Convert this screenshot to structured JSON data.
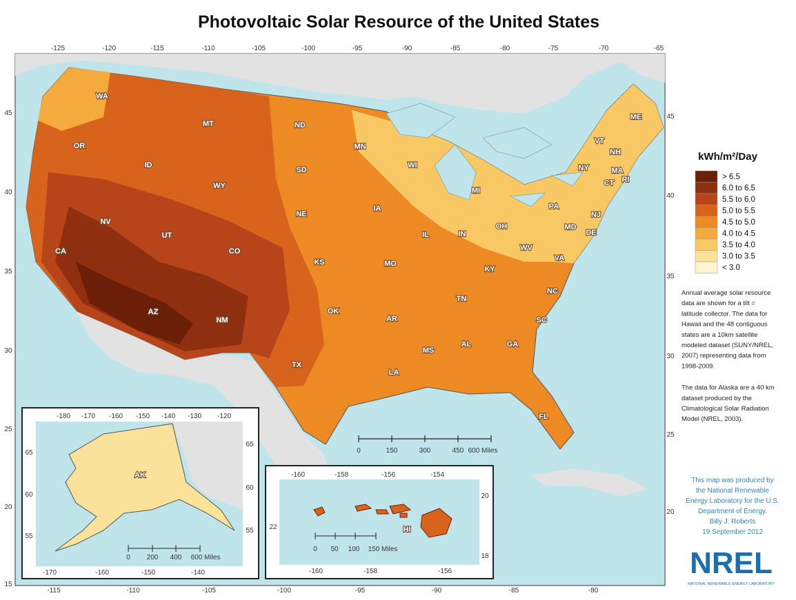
{
  "title": "Photovoltaic Solar Resource of the United States",
  "map": {
    "top_ticks": [
      "-125",
      "-120",
      "-115",
      "-110",
      "-105",
      "-100",
      "-95",
      "-90",
      "-85",
      "-80",
      "-75",
      "-70",
      "-65"
    ],
    "bottom_ticks": [
      "-115",
      "-110",
      "-105",
      "-100",
      "-95",
      "-90",
      "-85",
      "-80"
    ],
    "left_ticks": [
      "45",
      "40",
      "35",
      "30",
      "25",
      "20",
      "15"
    ],
    "right_ticks": [
      "45",
      "40",
      "35",
      "30",
      "25",
      "20"
    ],
    "states": [
      "WA",
      "OR",
      "CA",
      "NV",
      "ID",
      "MT",
      "WY",
      "UT",
      "CO",
      "AZ",
      "NM",
      "ND",
      "SD",
      "NE",
      "KS",
      "OK",
      "TX",
      "MN",
      "IA",
      "MO",
      "AR",
      "LA",
      "WI",
      "IL",
      "MS",
      "AL",
      "MI",
      "IN",
      "KY",
      "TN",
      "GA",
      "OH",
      "WV",
      "VA",
      "NC",
      "SC",
      "FL",
      "PA",
      "NY",
      "ME",
      "VT",
      "NH",
      "MA",
      "CT",
      "RI",
      "NJ",
      "MD",
      "DE"
    ],
    "scale": [
      "0",
      "150",
      "300",
      "450",
      "600 Miles"
    ]
  },
  "alaska": {
    "top_ticks": [
      "-180",
      "-170",
      "-160",
      "-150",
      "-140",
      "-130",
      "-120"
    ],
    "left_ticks": [
      "65",
      "60",
      "55"
    ],
    "right_ticks": [
      "65",
      "60",
      "55"
    ],
    "bottom_ticks": [
      "-170",
      "-160",
      "-150",
      "-140"
    ],
    "label": "AK",
    "scale": [
      "0",
      "200",
      "400",
      "600 Miles"
    ]
  },
  "hawaii": {
    "top_ticks": [
      "-160",
      "-158",
      "-156",
      "-154"
    ],
    "left_ticks": [
      "22"
    ],
    "right_ticks": [
      "20",
      "18"
    ],
    "bottom_ticks": [
      "-160",
      "-158",
      "-156"
    ],
    "label": "HI",
    "scale": [
      "0",
      "50",
      "100",
      "150 Miles"
    ]
  },
  "legend": {
    "title": "kWh/m²/Day",
    "items": [
      "> 6.5",
      "6.0 to 6.5",
      "5.5 to 6.0",
      "5.0 to 5.5",
      "4.5 to 5.0",
      "4.0 to 4.5",
      "3.5 to 4.0",
      "3.0 to 3.5",
      "< 3.0"
    ],
    "colors": [
      "#6b1f08",
      "#8e3010",
      "#b8441a",
      "#d8631c",
      "#ee8a24",
      "#f4aa3c",
      "#f8c865",
      "#fbe29a",
      "#fdf5d2"
    ]
  },
  "description": [
    [
      "Annual average solar resource",
      "data are shown for a tilt =",
      "latitude collector.  The data for",
      "Hawaii and the 48 contiguous",
      "states are a 10km satellite",
      "modeled dataset (SUNY/NREL,",
      "2007) representing data from",
      "1998-2009."
    ],
    [
      "The data for Alaska are a 40 km",
      "dataset produced by the",
      "Climatological Solar Radiation",
      "Model (NREL, 2003)."
    ]
  ],
  "credit": [
    "This map was produced by",
    "the National Renewable",
    "Energy Laboratory for the U.S.",
    "Department of Energy.",
    "Billy J. Roberts",
    "19 September 2012"
  ],
  "logo": {
    "name": "NREL",
    "subtitle": "NATIONAL RENEWABLE ENERGY LABORATORY"
  }
}
